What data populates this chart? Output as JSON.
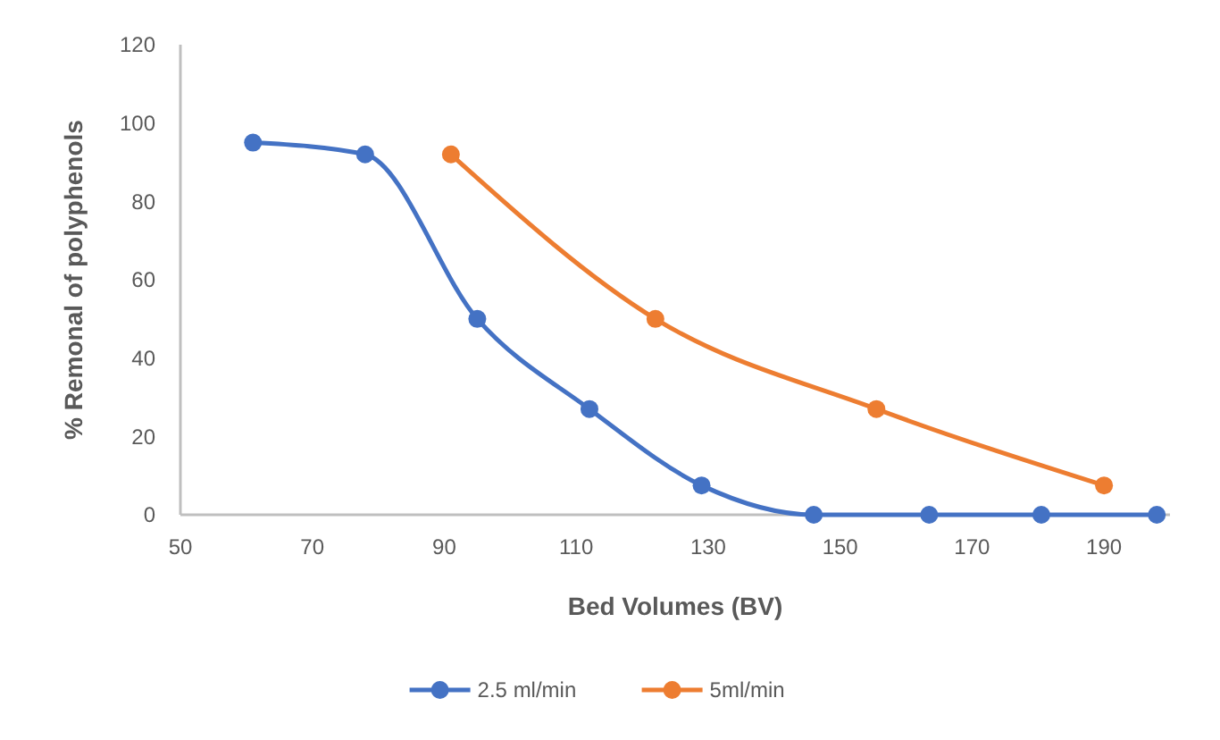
{
  "chart_data": {
    "type": "line",
    "xlabel": "Bed Volumes (BV)",
    "ylabel": "% Remonal of polyphenols",
    "xlim": [
      50,
      200
    ],
    "xticks": [
      50,
      70,
      90,
      110,
      130,
      150,
      170,
      190
    ],
    "ylim": [
      0,
      120
    ],
    "yticks": [
      0,
      20,
      40,
      60,
      80,
      100,
      120
    ],
    "grid": false,
    "legend": "bottom",
    "marker": "circle",
    "line_style": "solid",
    "series": [
      {
        "name": "2.5 ml/min",
        "color": "#4472c4",
        "x": [
          61,
          78,
          95,
          112,
          129,
          146,
          163.5,
          180.5,
          198
        ],
        "values": [
          95,
          92,
          50,
          27,
          7.5,
          0,
          0,
          0,
          0
        ]
      },
      {
        "name": "5ml/min",
        "color": "#ed7d31",
        "x": [
          91,
          122,
          155.5,
          190
        ],
        "values": [
          92,
          50,
          27,
          7.5
        ]
      }
    ]
  }
}
